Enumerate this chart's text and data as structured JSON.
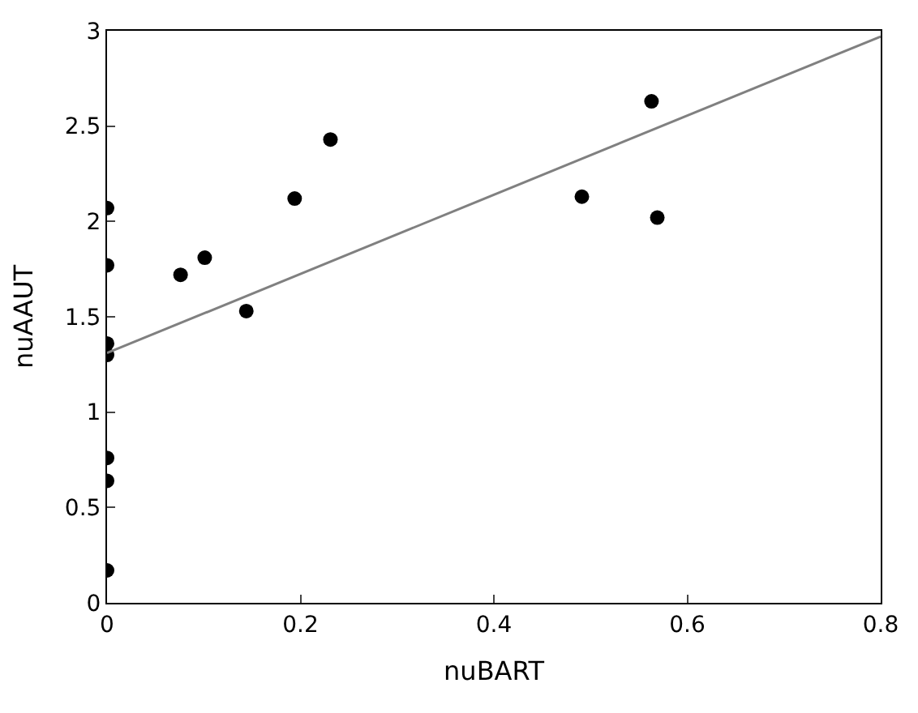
{
  "chart_data": {
    "type": "scatter",
    "xlabel": "nuBART",
    "ylabel": "nuAAUT",
    "xlim": [
      0,
      0.8
    ],
    "ylim": [
      0,
      3
    ],
    "xticks": [
      {
        "value": 0,
        "label": "0"
      },
      0.2,
      0.4,
      0.6,
      0.8
    ],
    "yticks": [
      {
        "value": 0,
        "label": "0"
      },
      0.5,
      {
        "value": 1,
        "label": "1"
      },
      1.5,
      {
        "value": 2,
        "label": "2"
      },
      2.5,
      {
        "value": 3,
        "label": "3"
      }
    ],
    "series": [
      {
        "marker": "circle",
        "color": "#000000",
        "x": [
          0,
          0,
          0,
          0,
          0,
          0,
          0,
          0.076,
          0.101,
          0.144,
          0.194,
          0.231,
          0.491,
          0.563,
          0.569
        ],
        "values": [
          0.17,
          0.64,
          0.76,
          1.3,
          1.36,
          1.77,
          2.07,
          1.72,
          1.81,
          1.53,
          2.12,
          2.43,
          2.13,
          2.63,
          2.02
        ]
      },
      {
        "type": "line",
        "color": "#808080",
        "x": [
          0,
          0.8
        ],
        "values": [
          1.31,
          2.97
        ]
      }
    ]
  }
}
